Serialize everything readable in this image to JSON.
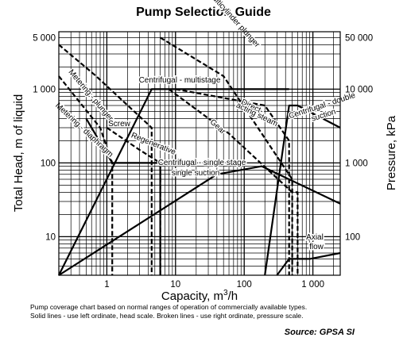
{
  "chart_data": {
    "type": "line",
    "title": "Pump Selection Guide",
    "xlabel": "Capacity, m³/h",
    "ylabel_left": "Total Head, m of liquid",
    "ylabel_right": "Pressure, kPa",
    "x_scale": "log",
    "y_scale": "log",
    "xlim": [
      0.2,
      2500
    ],
    "ylim": [
      3,
      6000
    ],
    "grid": true,
    "x_ticks": [
      "1",
      "10",
      "100",
      "1 000"
    ],
    "y_ticks_left": [
      "10",
      "100",
      "1 000",
      "5 000"
    ],
    "y_ticks_right": [
      "100",
      "1 000",
      "10 000",
      "50 000"
    ],
    "series": [
      {
        "name": "Centrifugal - multistage",
        "style": "solid",
        "x": [
          0.2,
          4.5,
          450
        ],
        "y": [
          3,
          1000,
          1000
        ]
      },
      {
        "name": "Centrifugal - single stage, single suction",
        "style": "solid",
        "x": [
          0.2,
          40,
          180,
          2500
        ],
        "y": [
          3,
          70,
          90,
          28
        ]
      },
      {
        "name": "Regenerative",
        "style": "solid",
        "x": [
          0.5,
          1.2,
          6,
          6
        ],
        "y": [
          400,
          100,
          100,
          3
        ]
      },
      {
        "name": "Centrifugal - double suction",
        "style": "solid",
        "x": [
          200,
          450,
          600,
          2500
        ],
        "y": [
          3,
          600,
          600,
          300
        ]
      },
      {
        "name": "Axial flow",
        "style": "solid",
        "x": [
          300,
          450,
          900,
          2500
        ],
        "y": [
          3,
          5,
          5,
          6
        ]
      },
      {
        "name": "Metering - plunger",
        "style": "dashed",
        "x": [
          0.2,
          0.7,
          4.5,
          4.5
        ],
        "y": [
          4000,
          1500,
          300,
          3
        ]
      },
      {
        "name": "Metering - diaphragm",
        "style": "dashed",
        "x": [
          0.2,
          0.8,
          1.2,
          1.2
        ],
        "y": [
          1500,
          300,
          100,
          3
        ]
      },
      {
        "name": "Screw",
        "style": "dashed",
        "x": [
          1,
          3,
          6,
          6
        ],
        "y": [
          300,
          150,
          100,
          3
        ]
      },
      {
        "name": "Gear",
        "style": "dashed",
        "x": [
          8,
          60,
          500,
          600,
          600
        ],
        "y": [
          1000,
          250,
          40,
          40,
          3
        ]
      },
      {
        "name": "Multicylinder plunger",
        "style": "dashed",
        "x": [
          6,
          50,
          500,
          500
        ],
        "y": [
          5000,
          1500,
          60,
          3
        ]
      },
      {
        "name": "Direct-acting steam",
        "style": "dashed",
        "x": [
          10,
          200,
          450,
          450
        ],
        "y": [
          1000,
          600,
          200,
          3
        ]
      }
    ],
    "annotations": [
      "Centrifugal - multistage",
      "Multicylinder plunger",
      "Metering - plunger",
      "Screw",
      "Regenerative",
      "Metering - diaphragm",
      "Centrifugal - single stage",
      "single suction",
      "Gear",
      "Direct-",
      "acting steam",
      "Centrifugal - double",
      "suction",
      "Axial",
      "flow"
    ]
  },
  "notes": {
    "line1": "Pump coverage chart based on normal ranges of operation of commercially available types.",
    "line2": "Solid lines - use left ordinate, head scale.  Broken lines - use right ordinate, pressure scale.",
    "source": "Source: GPSA SI"
  }
}
